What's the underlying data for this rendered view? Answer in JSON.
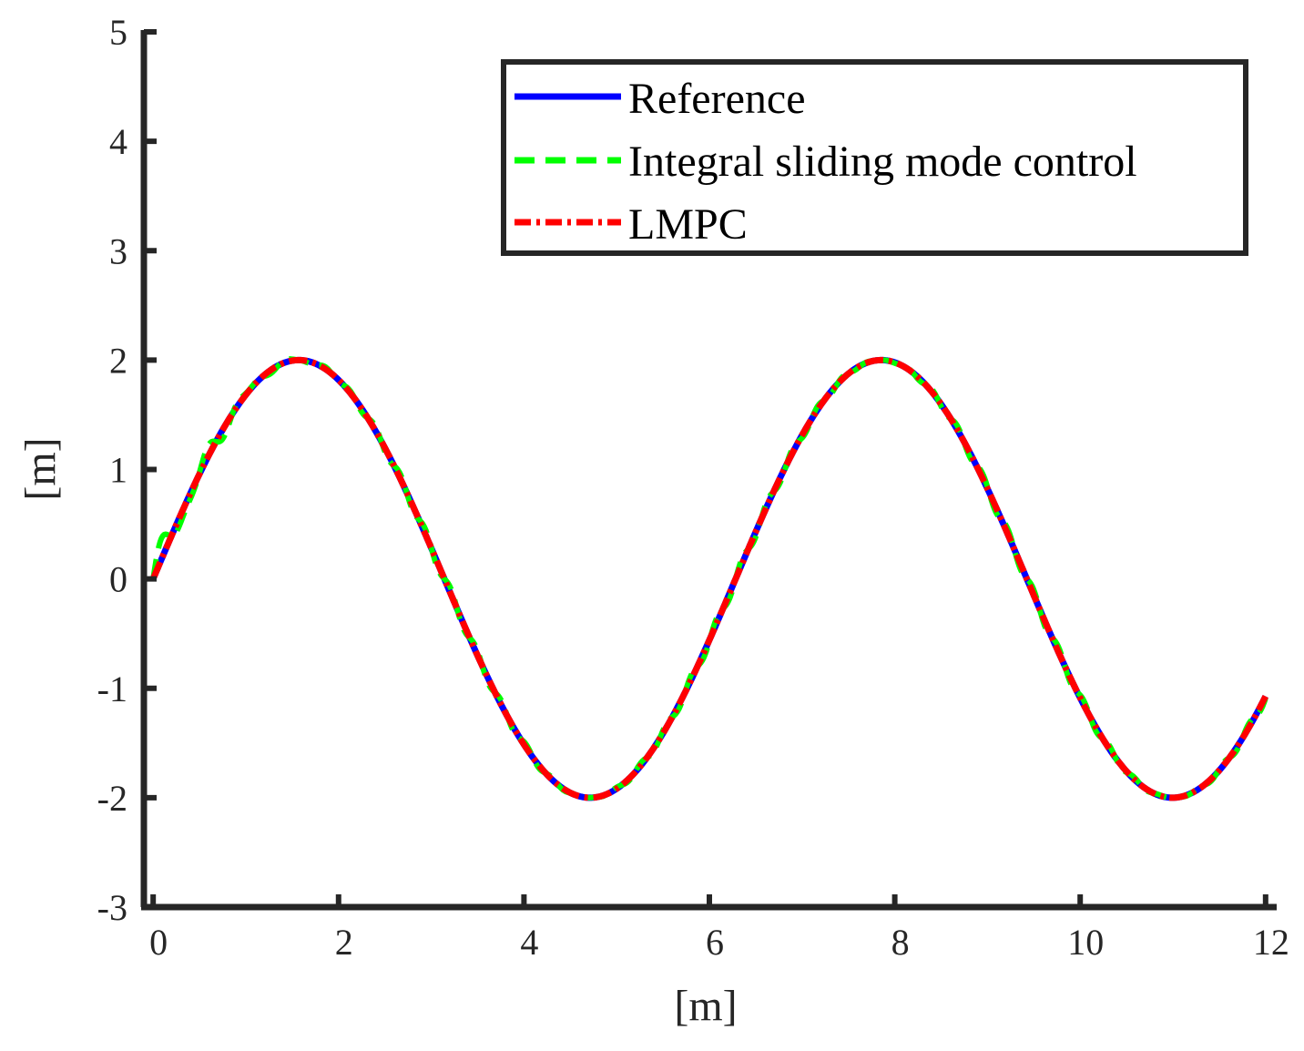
{
  "chart_data": {
    "type": "line",
    "title": "",
    "xlabel": "[m]",
    "ylabel": "[m]",
    "xlim": [
      -0.1,
      12.1
    ],
    "ylim": [
      -3,
      5
    ],
    "xticks": [
      0,
      2,
      4,
      6,
      8,
      10,
      12
    ],
    "yticks": [
      -3,
      -2,
      -1,
      0,
      1,
      2,
      3,
      4,
      5
    ],
    "xtick_labels": [
      "0",
      "2",
      "4",
      "6",
      "8",
      "10",
      "12"
    ],
    "ytick_labels": [
      "-3",
      "-2",
      "-1",
      "0",
      "1",
      "2",
      "3",
      "4",
      "5"
    ],
    "grid": false,
    "legend_position": "top-right",
    "series": [
      {
        "name": "Reference",
        "style": "solid",
        "color": "#0000ff",
        "function": "2*sin(x)",
        "x_range": [
          0,
          12
        ]
      },
      {
        "name": "Integral sliding mode control",
        "style": "dashed",
        "color": "#00ff00",
        "function": "2*sin(x) with small oscillatory deviations",
        "x_range": [
          0,
          12
        ]
      },
      {
        "name": "LMPC",
        "style": "dash-dot",
        "color": "#ff0000",
        "function": "2*sin(x)",
        "x_range": [
          0,
          12
        ]
      }
    ]
  }
}
